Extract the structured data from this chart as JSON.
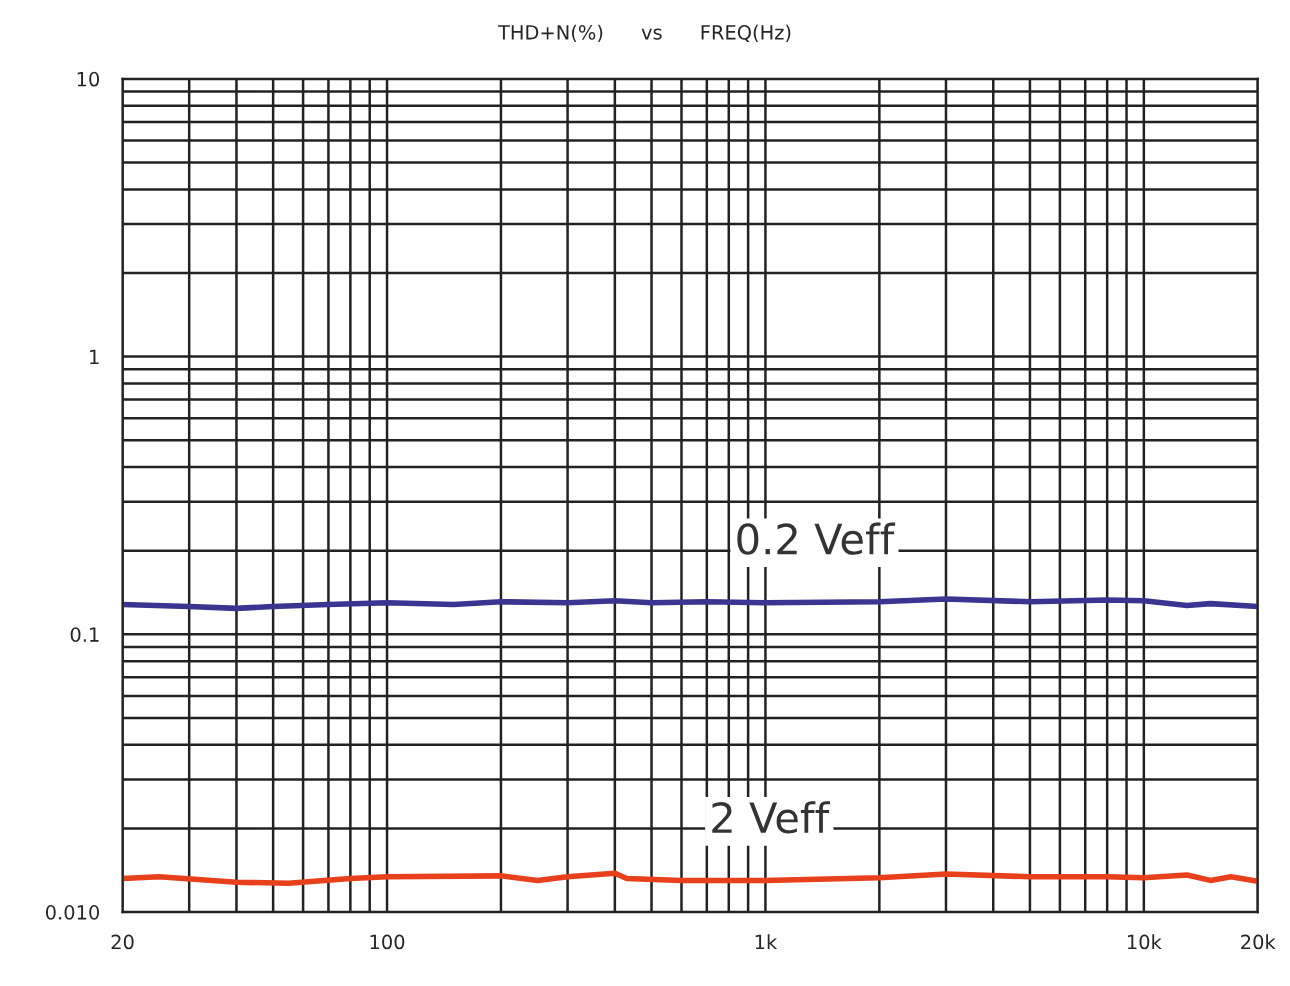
{
  "chart_data": {
    "type": "line",
    "title": "THD+N(%)      vs      FREQ(Hz)",
    "log": "xy",
    "grid": true,
    "legend": false,
    "marker": "none",
    "line_style": "solid",
    "xlim": [
      20,
      20000
    ],
    "xticks": [
      20,
      {
        "value": 30,
        "label": null
      },
      {
        "value": 40,
        "label": null
      },
      {
        "value": 50,
        "label": null
      },
      {
        "value": 60,
        "label": null
      },
      {
        "value": 70,
        "label": null
      },
      {
        "value": 80,
        "label": null
      },
      {
        "value": 90,
        "label": null
      },
      100,
      {
        "value": 200,
        "label": null
      },
      {
        "value": 300,
        "label": null
      },
      {
        "value": 400,
        "label": null
      },
      {
        "value": 500,
        "label": null
      },
      {
        "value": 600,
        "label": null
      },
      {
        "value": 700,
        "label": null
      },
      {
        "value": 800,
        "label": null
      },
      {
        "value": 900,
        "label": null
      },
      {
        "value": 1000,
        "label": "1k"
      },
      {
        "value": 2000,
        "label": null
      },
      {
        "value": 3000,
        "label": null
      },
      {
        "value": 4000,
        "label": null
      },
      {
        "value": 5000,
        "label": null
      },
      {
        "value": 6000,
        "label": null
      },
      {
        "value": 7000,
        "label": null
      },
      {
        "value": 8000,
        "label": null
      },
      {
        "value": 9000,
        "label": null
      },
      {
        "value": 10000,
        "label": "10k"
      },
      {
        "value": 20000,
        "label": "20k"
      }
    ],
    "ylim": [
      0.01,
      10
    ],
    "yticks": [
      {
        "value": 0.01,
        "label": "0.010"
      },
      {
        "value": 0.02,
        "label": null
      },
      {
        "value": 0.03,
        "label": null
      },
      {
        "value": 0.04,
        "label": null
      },
      {
        "value": 0.05,
        "label": null
      },
      {
        "value": 0.06,
        "label": null
      },
      {
        "value": 0.07,
        "label": null
      },
      {
        "value": 0.08,
        "label": null
      },
      {
        "value": 0.09,
        "label": null
      },
      0.1,
      {
        "value": 0.2,
        "label": null
      },
      {
        "value": 0.3,
        "label": null
      },
      {
        "value": 0.4,
        "label": null
      },
      {
        "value": 0.5,
        "label": null
      },
      {
        "value": 0.6,
        "label": null
      },
      {
        "value": 0.7,
        "label": null
      },
      {
        "value": 0.8,
        "label": null
      },
      {
        "value": 0.9,
        "label": null
      },
      1,
      {
        "value": 2,
        "label": null
      },
      {
        "value": 3,
        "label": null
      },
      {
        "value": 4,
        "label": null
      },
      {
        "value": 5,
        "label": null
      },
      {
        "value": 6,
        "label": null
      },
      {
        "value": 7,
        "label": null
      },
      {
        "value": 8,
        "label": null
      },
      {
        "value": 9,
        "label": null
      },
      10
    ],
    "series": [
      {
        "name": "0.2 Veff",
        "color": "#3a3591",
        "x": [
          20,
          30,
          40,
          50,
          70,
          100,
          150,
          200,
          300,
          400,
          500,
          700,
          1000,
          2000,
          3000,
          5000,
          8000,
          10000,
          13000,
          15000,
          20000
        ],
        "values": [
          0.128,
          0.126,
          0.124,
          0.126,
          0.128,
          0.13,
          0.128,
          0.131,
          0.13,
          0.132,
          0.13,
          0.131,
          0.13,
          0.131,
          0.134,
          0.131,
          0.133,
          0.132,
          0.127,
          0.129,
          0.126
        ]
      },
      {
        "name": "2 Veff",
        "color": "#e8401c",
        "x": [
          20,
          25,
          40,
          55,
          80,
          100,
          200,
          250,
          300,
          400,
          430,
          600,
          1000,
          2000,
          3000,
          5000,
          8000,
          10000,
          13000,
          15000,
          17000,
          20000
        ],
        "values": [
          0.0132,
          0.0134,
          0.0128,
          0.0127,
          0.0132,
          0.0134,
          0.0135,
          0.013,
          0.0134,
          0.0138,
          0.0132,
          0.013,
          0.013,
          0.0133,
          0.0137,
          0.0134,
          0.0134,
          0.0133,
          0.0136,
          0.013,
          0.0134,
          0.0129
        ]
      }
    ]
  }
}
